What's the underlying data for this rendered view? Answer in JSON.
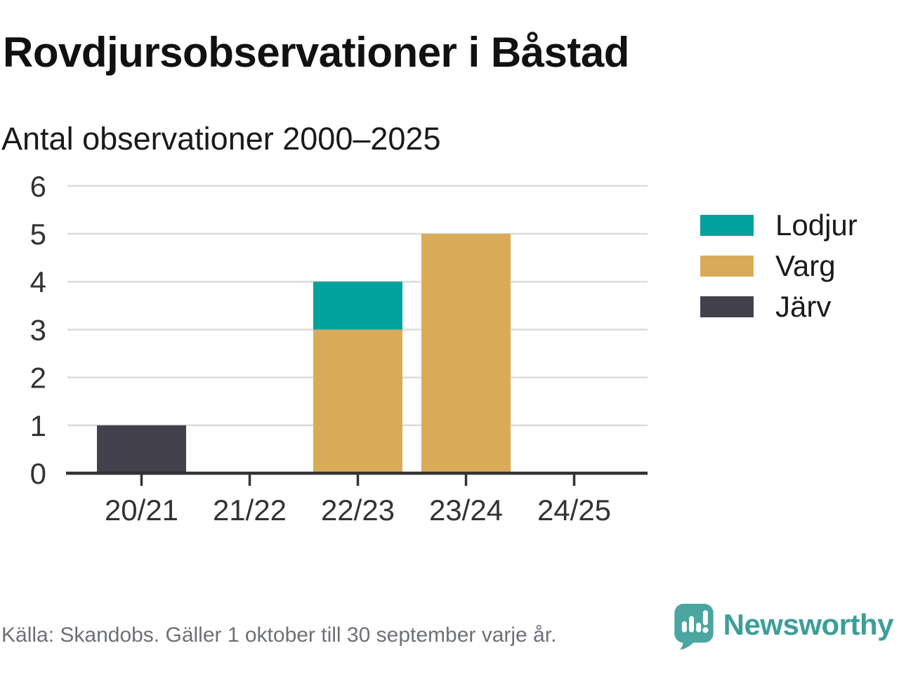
{
  "header": {
    "title": "Rovdjursobservationer i Båstad",
    "subtitle": "Antal observationer 2000–2025"
  },
  "chart_data": {
    "type": "bar",
    "stacked": true,
    "title": "Rovdjursobservationer i Båstad",
    "subtitle": "Antal observationer 2000–2025",
    "categories": [
      "20/21",
      "21/22",
      "22/23",
      "23/24",
      "24/25"
    ],
    "series": [
      {
        "name": "Lodjur",
        "color": "#00a39b",
        "values": [
          0,
          0,
          1,
          0,
          0
        ]
      },
      {
        "name": "Varg",
        "color": "#d9ab59",
        "values": [
          0,
          0,
          3,
          5,
          0
        ]
      },
      {
        "name": "Järv",
        "color": "#43414e",
        "values": [
          1,
          0,
          0,
          0,
          0
        ]
      }
    ],
    "stack_order_bottom_to_top": [
      "Järv",
      "Varg",
      "Lodjur"
    ],
    "xlabel": "",
    "ylabel": "",
    "ylim": [
      0,
      6
    ],
    "yticks": [
      0,
      1,
      2,
      3,
      4,
      5,
      6
    ],
    "grid": "horizontal",
    "legend_position": "right"
  },
  "footer": {
    "source": "Källa: Skandobs. Gäller 1 oktober till 30 september varje år.",
    "brand": "Newsworthy"
  },
  "colors": {
    "axis": "#333333",
    "grid": "#dcdcdc",
    "tick_label": "#333333",
    "brand_teal": "#3d9e99",
    "logo_teal": "#4ba5a0"
  }
}
